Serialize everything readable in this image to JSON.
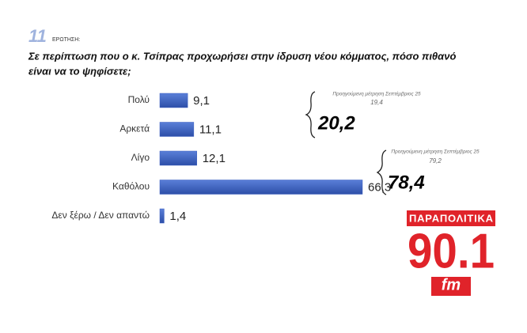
{
  "chart_data": {
    "type": "bar",
    "question_number": "11",
    "question_label": "ΕΡΩΤΗΣΗ:",
    "title_lines": [
      "Σε περίπτωση που ο κ. Τσίπρας προχωρήσει στην ίδρυση νέου κόμματος, πόσο πιθανό",
      "είναι να το ψηφίσετε;"
    ],
    "categories": [
      "Πολύ",
      "Αρκετά",
      "Λίγο",
      "Καθόλου",
      "Δεν ξέρω / Δεν απαντώ"
    ],
    "values": [
      9.1,
      11.1,
      12.1,
      66.3,
      1.4
    ],
    "value_labels": [
      "9,1",
      "11,1",
      "12,1",
      "66,3",
      "1,4"
    ],
    "color": "#3b5fc0",
    "annotations": [
      {
        "note": "Προηγούμενη μέτρηση Σεπτέμβριος 25",
        "previous": "19,4",
        "total": "20,2"
      },
      {
        "note": "Προηγούμενη μέτρηση Σεπτέμβριος 25",
        "previous": "79,2",
        "total": "78,4"
      }
    ],
    "logo": {
      "top": "ΠΑΡΑΠΟΛΙΤΙΚΑ",
      "main": "90.1",
      "sub": "fm"
    }
  }
}
